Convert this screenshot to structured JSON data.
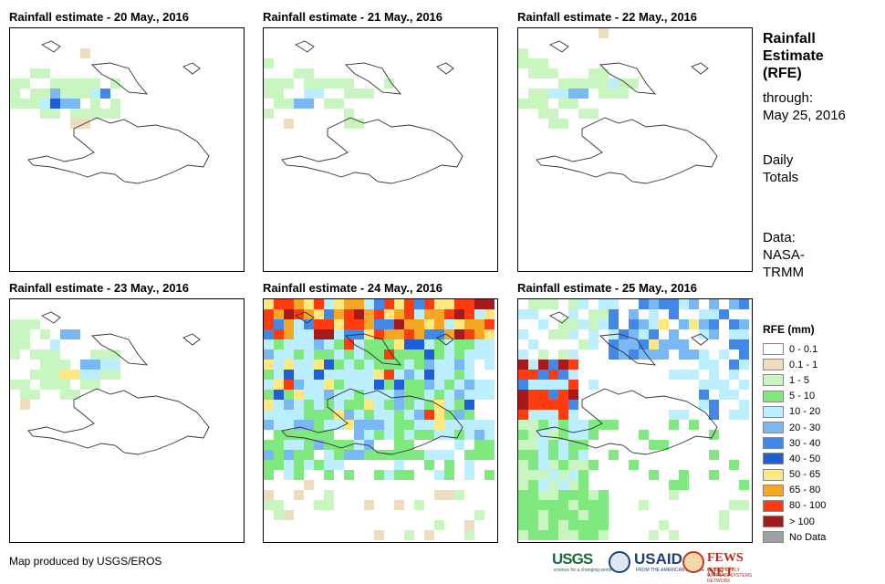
{
  "panels": [
    {
      "title": "Rainfall estimate - 20 May., 2016"
    },
    {
      "title": "Rainfall estimate - 21 May., 2016"
    },
    {
      "title": "Rainfall estimate - 22 May., 2016"
    },
    {
      "title": "Rainfall estimate - 23 May., 2016"
    },
    {
      "title": "Rainfall estimate - 24 May., 2016"
    },
    {
      "title": "Rainfall estimate - 25 May., 2016"
    }
  ],
  "sidebar": {
    "title_lines": [
      "Rainfall",
      "Estimate",
      "(RFE)"
    ],
    "through_lines": [
      "through:",
      "May 25, 2016"
    ],
    "daily_lines": [
      "Daily",
      "Totals"
    ],
    "data_lines": [
      "Data:",
      "NASA-",
      "TRMM"
    ]
  },
  "legend": {
    "title": "RFE (mm)",
    "items": [
      {
        "label": "0 - 0.1",
        "color": "#ffffff"
      },
      {
        "label": "0.1 - 1",
        "color": "#eedcbe"
      },
      {
        "label": "1 - 5",
        "color": "#c8f5c0"
      },
      {
        "label": "5 - 10",
        "color": "#7fe87f"
      },
      {
        "label": "10 - 20",
        "color": "#bbeeff"
      },
      {
        "label": "20 - 30",
        "color": "#79b8f3"
      },
      {
        "label": "30 - 40",
        "color": "#4288e6"
      },
      {
        "label": "40 - 50",
        "color": "#1e5fd7"
      },
      {
        "label": "50 - 65",
        "color": "#ffe880"
      },
      {
        "label": "65 - 80",
        "color": "#f5a623"
      },
      {
        "label": "80 - 100",
        "color": "#ff3b10"
      },
      {
        "label": "> 100",
        "color": "#a51a1a"
      },
      {
        "label": "No Data",
        "color": "#a0a0a0"
      }
    ]
  },
  "credit": "Map produced by USGS/EROS",
  "logos": {
    "usgs": "USGS",
    "usgs_tag": "science for a changing world",
    "usaid": "USAID",
    "usaid_tag": "FROM THE AMERICAN PEOPLE",
    "fews": "FEWS NET",
    "fews_tag": "FAMINE EARLY WARNING SYSTEMS NETWORK"
  }
}
